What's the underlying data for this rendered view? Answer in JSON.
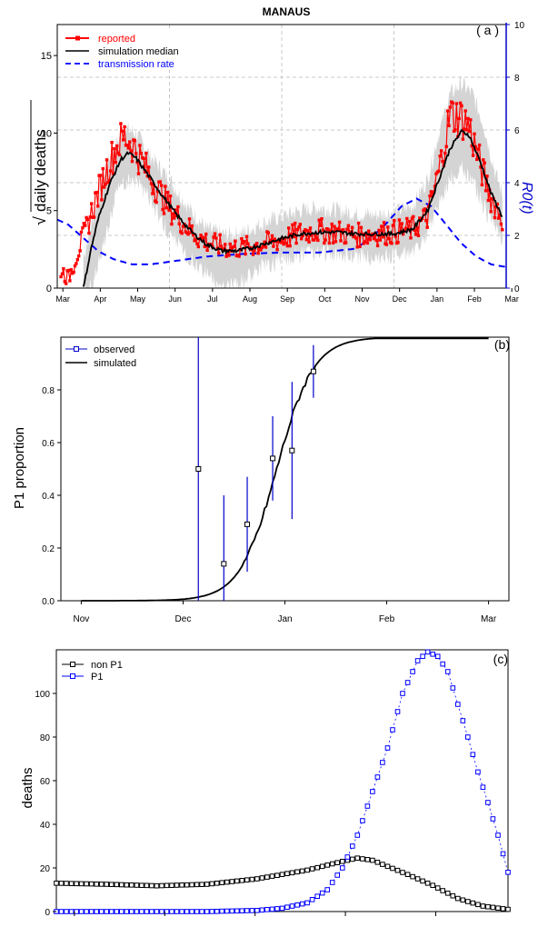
{
  "chart_data": [
    {
      "panel": "a",
      "type": "line",
      "title": "MANAUS",
      "panel_label": "( a )",
      "ylabel_left": "daily deaths",
      "ylabel_left_prefix": "√",
      "ylabel_right": "R0(t)",
      "xlim": [
        0,
        12
      ],
      "ylim_left": [
        0,
        17
      ],
      "ylim_right": [
        0,
        10
      ],
      "x_tick_labels": [
        "Mar",
        "Apr",
        "May",
        "Jun",
        "Jul",
        "Aug",
        "Sep",
        "Oct",
        "Nov",
        "Dec",
        "Jan",
        "Feb",
        "Mar"
      ],
      "y_ticks_left": [
        0,
        5,
        10,
        15
      ],
      "y_ticks_right": [
        0,
        2,
        4,
        6,
        8,
        10
      ],
      "grid": true,
      "legend_position": "top-left",
      "legend": [
        "reported",
        "simulation median",
        "transmission rate"
      ],
      "colors": {
        "reported": "#ff0000",
        "median": "#000000",
        "rate": "#0000ff",
        "band": "#d4d4d4"
      },
      "reported_knots": [
        [
          0.1,
          1.2
        ],
        [
          0.3,
          0.6
        ],
        [
          0.5,
          2.0
        ],
        [
          0.8,
          4.0
        ],
        [
          1.0,
          5.5
        ],
        [
          1.3,
          7.5
        ],
        [
          1.6,
          9.2
        ],
        [
          1.8,
          9.8
        ],
        [
          2.0,
          9.3
        ],
        [
          2.3,
          8.0
        ],
        [
          2.6,
          6.7
        ],
        [
          3.0,
          5.2
        ],
        [
          3.4,
          4.1
        ],
        [
          3.8,
          3.2
        ],
        [
          4.2,
          2.8
        ],
        [
          4.6,
          2.6
        ],
        [
          5.0,
          2.6
        ],
        [
          5.4,
          2.8
        ],
        [
          5.8,
          3.0
        ],
        [
          6.2,
          3.3
        ],
        [
          6.6,
          3.6
        ],
        [
          7.0,
          3.7
        ],
        [
          7.5,
          3.6
        ],
        [
          8.0,
          3.4
        ],
        [
          8.5,
          3.5
        ],
        [
          9.0,
          3.6
        ],
        [
          9.5,
          3.8
        ],
        [
          9.9,
          4.6
        ],
        [
          10.2,
          7.5
        ],
        [
          10.5,
          11.2
        ],
        [
          10.8,
          11.0
        ],
        [
          11.0,
          10.5
        ],
        [
          11.3,
          8.0
        ],
        [
          11.6,
          5.8
        ],
        [
          11.9,
          4.5
        ]
      ],
      "median_knots": [
        [
          0.7,
          0.0
        ],
        [
          0.9,
          2.5
        ],
        [
          1.1,
          4.5
        ],
        [
          1.4,
          6.7
        ],
        [
          1.7,
          8.3
        ],
        [
          1.9,
          8.7
        ],
        [
          2.1,
          8.4
        ],
        [
          2.4,
          7.4
        ],
        [
          2.8,
          6.0
        ],
        [
          3.2,
          4.7
        ],
        [
          3.6,
          3.6
        ],
        [
          4.0,
          2.8
        ],
        [
          4.4,
          2.4
        ],
        [
          4.8,
          2.4
        ],
        [
          5.2,
          2.6
        ],
        [
          5.6,
          2.9
        ],
        [
          6.0,
          3.2
        ],
        [
          6.5,
          3.5
        ],
        [
          7.0,
          3.6
        ],
        [
          7.5,
          3.6
        ],
        [
          8.0,
          3.5
        ],
        [
          8.5,
          3.5
        ],
        [
          9.0,
          3.5
        ],
        [
          9.5,
          3.8
        ],
        [
          9.9,
          5.0
        ],
        [
          10.2,
          7.0
        ],
        [
          10.5,
          9.0
        ],
        [
          10.8,
          10.1
        ],
        [
          11.0,
          9.9
        ],
        [
          11.3,
          8.2
        ],
        [
          11.6,
          6.1
        ],
        [
          11.9,
          4.6
        ]
      ],
      "band_upper_knots": [
        [
          0.7,
          2.0
        ],
        [
          1.0,
          5.0
        ],
        [
          1.4,
          8.5
        ],
        [
          1.8,
          10.3
        ],
        [
          2.1,
          10.0
        ],
        [
          2.5,
          8.5
        ],
        [
          3.0,
          7.0
        ],
        [
          3.5,
          5.2
        ],
        [
          4.0,
          3.8
        ],
        [
          4.5,
          3.4
        ],
        [
          5.0,
          3.6
        ],
        [
          5.5,
          4.2
        ],
        [
          6.0,
          4.6
        ],
        [
          6.5,
          5.0
        ],
        [
          7.0,
          5.2
        ],
        [
          7.5,
          5.0
        ],
        [
          8.0,
          4.8
        ],
        [
          8.5,
          4.7
        ],
        [
          9.0,
          4.9
        ],
        [
          9.5,
          5.3
        ],
        [
          9.9,
          7.0
        ],
        [
          10.2,
          10.0
        ],
        [
          10.5,
          12.5
        ],
        [
          10.8,
          13.2
        ],
        [
          11.1,
          12.5
        ],
        [
          11.4,
          10.5
        ],
        [
          11.7,
          7.5
        ],
        [
          11.9,
          6.0
        ]
      ],
      "band_lower_knots": [
        [
          0.9,
          0.0
        ],
        [
          1.2,
          2.5
        ],
        [
          1.6,
          6.2
        ],
        [
          1.9,
          7.0
        ],
        [
          2.2,
          6.7
        ],
        [
          2.6,
          5.2
        ],
        [
          3.0,
          3.5
        ],
        [
          3.5,
          2.0
        ],
        [
          4.0,
          1.0
        ],
        [
          4.3,
          0.0
        ],
        [
          4.6,
          0.0
        ],
        [
          5.0,
          0.6
        ],
        [
          5.5,
          1.4
        ],
        [
          6.0,
          1.8
        ],
        [
          6.5,
          2.2
        ],
        [
          7.0,
          2.3
        ],
        [
          7.5,
          2.2
        ],
        [
          8.0,
          2.0
        ],
        [
          8.5,
          2.0
        ],
        [
          9.0,
          2.1
        ],
        [
          9.5,
          2.3
        ],
        [
          9.9,
          3.5
        ],
        [
          10.2,
          5.5
        ],
        [
          10.5,
          7.0
        ],
        [
          10.8,
          7.8
        ],
        [
          11.1,
          7.0
        ],
        [
          11.4,
          5.2
        ],
        [
          11.7,
          3.8
        ],
        [
          11.9,
          3.2
        ]
      ],
      "rate_knots": [
        [
          0.0,
          2.6
        ],
        [
          0.3,
          2.4
        ],
        [
          0.7,
          1.9
        ],
        [
          1.1,
          1.4
        ],
        [
          1.5,
          1.1
        ],
        [
          2.0,
          0.9
        ],
        [
          2.5,
          0.9
        ],
        [
          3.0,
          1.0
        ],
        [
          3.5,
          1.1
        ],
        [
          4.0,
          1.2
        ],
        [
          5.0,
          1.3
        ],
        [
          6.0,
          1.35
        ],
        [
          7.0,
          1.35
        ],
        [
          8.0,
          1.5
        ],
        [
          8.7,
          2.3
        ],
        [
          9.2,
          3.1
        ],
        [
          9.6,
          3.4
        ],
        [
          10.0,
          3.1
        ],
        [
          10.4,
          2.4
        ],
        [
          10.8,
          1.7
        ],
        [
          11.2,
          1.2
        ],
        [
          11.6,
          0.9
        ],
        [
          12.0,
          0.8
        ]
      ]
    },
    {
      "panel": "b",
      "type": "line",
      "panel_label": "(b)",
      "ylabel": "P1 proportion",
      "xlim": [
        -0.2,
        4.2
      ],
      "ylim": [
        0,
        1
      ],
      "x_tick_labels": [
        "Nov",
        "Dec",
        "Jan",
        "Feb",
        "Mar"
      ],
      "y_ticks": [
        0.0,
        0.2,
        0.4,
        0.6,
        0.8
      ],
      "legend_position": "top-left",
      "legend": [
        "observed",
        "simulated"
      ],
      "colors": {
        "observed": "#0000cc",
        "simulated": "#000000"
      },
      "observed": [
        {
          "x": 1.15,
          "y": 0.5,
          "low": 0.0,
          "high": 1.0
        },
        {
          "x": 1.4,
          "y": 0.14,
          "low": 0.0,
          "high": 0.4
        },
        {
          "x": 1.63,
          "y": 0.29,
          "low": 0.11,
          "high": 0.47
        },
        {
          "x": 1.88,
          "y": 0.54,
          "low": 0.38,
          "high": 0.7
        },
        {
          "x": 2.07,
          "y": 0.57,
          "low": 0.31,
          "high": 0.83
        },
        {
          "x": 2.28,
          "y": 0.87,
          "low": 0.77,
          "high": 0.97
        }
      ],
      "simulated_logistic": {
        "midpoint": 1.92,
        "scale": 0.18
      }
    },
    {
      "panel": "c",
      "type": "scatter",
      "panel_label": "(c)",
      "ylabel": "deaths",
      "xlim": [
        0,
        90
      ],
      "ylim": [
        0,
        120
      ],
      "x_tick_count": 5,
      "y_ticks": [
        0,
        20,
        40,
        60,
        80,
        100
      ],
      "legend_position": "top-left",
      "legend": [
        "non P1",
        "P1"
      ],
      "colors": {
        "nonP1": "#000000",
        "P1": "#0000ff"
      },
      "n_points": 90,
      "nonP1_knots": [
        [
          0,
          13
        ],
        [
          10,
          12.5
        ],
        [
          20,
          11.8
        ],
        [
          30,
          12.5
        ],
        [
          40,
          15
        ],
        [
          50,
          19
        ],
        [
          57,
          23
        ],
        [
          60,
          24.5
        ],
        [
          63,
          23.5
        ],
        [
          70,
          17
        ],
        [
          75,
          12
        ],
        [
          80,
          6
        ],
        [
          85,
          2.5
        ],
        [
          90,
          1
        ]
      ],
      "P1_knots": [
        [
          0,
          0
        ],
        [
          30,
          0
        ],
        [
          40,
          0.5
        ],
        [
          45,
          1.5
        ],
        [
          50,
          4
        ],
        [
          54,
          10
        ],
        [
          57,
          20
        ],
        [
          60,
          35
        ],
        [
          63,
          55
        ],
        [
          66,
          75
        ],
        [
          69,
          100
        ],
        [
          72,
          115
        ],
        [
          74,
          119
        ],
        [
          76,
          117
        ],
        [
          78,
          110
        ],
        [
          80,
          95
        ],
        [
          82,
          80
        ],
        [
          84,
          64
        ],
        [
          86,
          50
        ],
        [
          88,
          35
        ],
        [
          90,
          18
        ]
      ]
    }
  ]
}
